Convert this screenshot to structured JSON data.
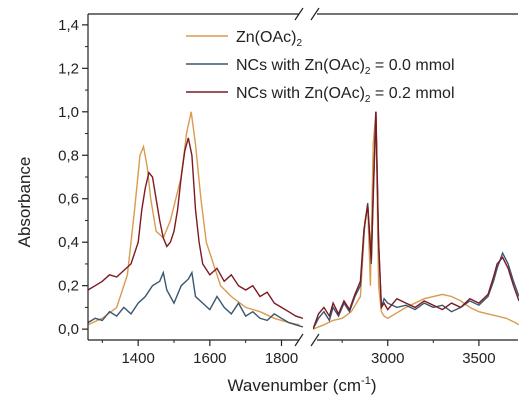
{
  "chart_data": {
    "type": "line",
    "xlabel": "Wavenumber (cm",
    "xlabel_sup": "-1",
    "xlabel_close": ")",
    "ylabel": "Absorbance",
    "axis_break": true,
    "xlim_left": [
      1260,
      1860
    ],
    "xlim_right": [
      2590,
      3720
    ],
    "ylim": [
      -0.05,
      1.45
    ],
    "x_ticks_left": [
      1400,
      1600,
      1800
    ],
    "x_ticks_right": [
      3000,
      3500
    ],
    "x_tick_labels_left": [
      "1400",
      "1600",
      "1800"
    ],
    "x_tick_labels_right": [
      "3000",
      "3500"
    ],
    "y_ticks": [
      0.0,
      0.2,
      0.4,
      0.6,
      0.8,
      1.0,
      1.2,
      1.4
    ],
    "y_tick_labels": [
      "0,0",
      "0,2",
      "0,4",
      "0,6",
      "0,8",
      "1,0",
      "1,2",
      "1,4"
    ],
    "grid": false,
    "legend_position": "top-right",
    "series": [
      {
        "name": "Zn(OAc)",
        "name_sub": "2",
        "color": "#d99b4f",
        "x": [
          1260,
          1300,
          1340,
          1370,
          1390,
          1405,
          1415,
          1425,
          1435,
          1450,
          1470,
          1490,
          1505,
          1520,
          1535,
          1548,
          1560,
          1575,
          1590,
          1610,
          1630,
          1660,
          1700,
          1740,
          1780,
          1820,
          1850,
          2590,
          2650,
          2700,
          2750,
          2800,
          2850,
          2875,
          2890,
          2905,
          2920,
          2935,
          2950,
          2965,
          2980,
          3000,
          3100,
          3200,
          3300,
          3350,
          3400,
          3450,
          3500,
          3550,
          3600,
          3650,
          3700,
          3720
        ],
        "y": [
          0.02,
          0.05,
          0.1,
          0.25,
          0.55,
          0.8,
          0.84,
          0.75,
          0.6,
          0.45,
          0.42,
          0.5,
          0.6,
          0.7,
          0.9,
          1.0,
          0.85,
          0.6,
          0.4,
          0.3,
          0.2,
          0.15,
          0.1,
          0.08,
          0.05,
          0.03,
          0.02,
          0.0,
          0.02,
          0.04,
          0.05,
          0.08,
          0.15,
          0.5,
          0.57,
          0.2,
          0.85,
          1.0,
          0.2,
          0.08,
          0.06,
          0.05,
          0.1,
          0.14,
          0.16,
          0.15,
          0.13,
          0.1,
          0.08,
          0.07,
          0.06,
          0.05,
          0.03,
          0.02
        ]
      },
      {
        "name": "NCs with Zn(OAc)",
        "name_sub": "2",
        "name_suffix": " = 0.0 mmol",
        "color": "#3b566f",
        "x": [
          1260,
          1280,
          1300,
          1320,
          1340,
          1360,
          1380,
          1400,
          1420,
          1440,
          1460,
          1470,
          1480,
          1500,
          1520,
          1540,
          1550,
          1560,
          1580,
          1600,
          1620,
          1640,
          1660,
          1680,
          1700,
          1720,
          1740,
          1760,
          1780,
          1800,
          1820,
          1840,
          1860,
          2590,
          2620,
          2650,
          2680,
          2700,
          2730,
          2760,
          2790,
          2820,
          2850,
          2870,
          2890,
          2910,
          2920,
          2935,
          2950,
          2965,
          2980,
          3000,
          3050,
          3100,
          3150,
          3200,
          3250,
          3300,
          3350,
          3400,
          3450,
          3500,
          3550,
          3580,
          3600,
          3630,
          3660,
          3690,
          3720
        ],
        "y": [
          0.03,
          0.05,
          0.04,
          0.08,
          0.06,
          0.1,
          0.07,
          0.12,
          0.15,
          0.2,
          0.22,
          0.26,
          0.18,
          0.12,
          0.2,
          0.23,
          0.26,
          0.15,
          0.12,
          0.09,
          0.15,
          0.1,
          0.07,
          0.12,
          0.06,
          0.08,
          0.05,
          0.04,
          0.07,
          0.05,
          0.03,
          0.02,
          0.01,
          0.0,
          0.05,
          0.08,
          0.04,
          0.1,
          0.06,
          0.12,
          0.08,
          0.15,
          0.2,
          0.45,
          0.58,
          0.3,
          0.6,
          1.0,
          0.4,
          0.1,
          0.14,
          0.12,
          0.1,
          0.11,
          0.09,
          0.12,
          0.1,
          0.11,
          0.08,
          0.1,
          0.13,
          0.11,
          0.15,
          0.22,
          0.28,
          0.35,
          0.3,
          0.22,
          0.15
        ]
      },
      {
        "name": "NCs with Zn(OAc)",
        "name_sub": "2",
        "name_suffix": " = 0.2 mmol",
        "color": "#7c1a22",
        "x": [
          1260,
          1280,
          1300,
          1320,
          1340,
          1360,
          1380,
          1400,
          1410,
          1420,
          1430,
          1440,
          1450,
          1460,
          1470,
          1480,
          1490,
          1500,
          1510,
          1520,
          1530,
          1540,
          1550,
          1560,
          1570,
          1580,
          1600,
          1620,
          1640,
          1660,
          1680,
          1700,
          1720,
          1740,
          1760,
          1780,
          1800,
          1820,
          1840,
          1860,
          2590,
          2620,
          2650,
          2680,
          2700,
          2730,
          2760,
          2790,
          2820,
          2850,
          2870,
          2890,
          2910,
          2920,
          2935,
          2950,
          2965,
          2980,
          3000,
          3050,
          3100,
          3150,
          3200,
          3250,
          3300,
          3350,
          3400,
          3450,
          3500,
          3550,
          3580,
          3600,
          3630,
          3660,
          3690,
          3720
        ],
        "y": [
          0.18,
          0.2,
          0.22,
          0.25,
          0.24,
          0.27,
          0.3,
          0.4,
          0.55,
          0.65,
          0.72,
          0.7,
          0.6,
          0.5,
          0.42,
          0.38,
          0.4,
          0.45,
          0.55,
          0.7,
          0.82,
          0.88,
          0.8,
          0.55,
          0.4,
          0.3,
          0.25,
          0.28,
          0.22,
          0.25,
          0.2,
          0.18,
          0.2,
          0.15,
          0.17,
          0.12,
          0.1,
          0.08,
          0.06,
          0.05,
          0.0,
          0.07,
          0.1,
          0.06,
          0.12,
          0.07,
          0.13,
          0.09,
          0.16,
          0.22,
          0.46,
          0.57,
          0.32,
          0.62,
          1.0,
          0.4,
          0.1,
          0.12,
          0.09,
          0.14,
          0.12,
          0.1,
          0.13,
          0.11,
          0.09,
          0.12,
          0.1,
          0.14,
          0.12,
          0.16,
          0.24,
          0.3,
          0.33,
          0.28,
          0.2,
          0.13
        ]
      }
    ]
  }
}
